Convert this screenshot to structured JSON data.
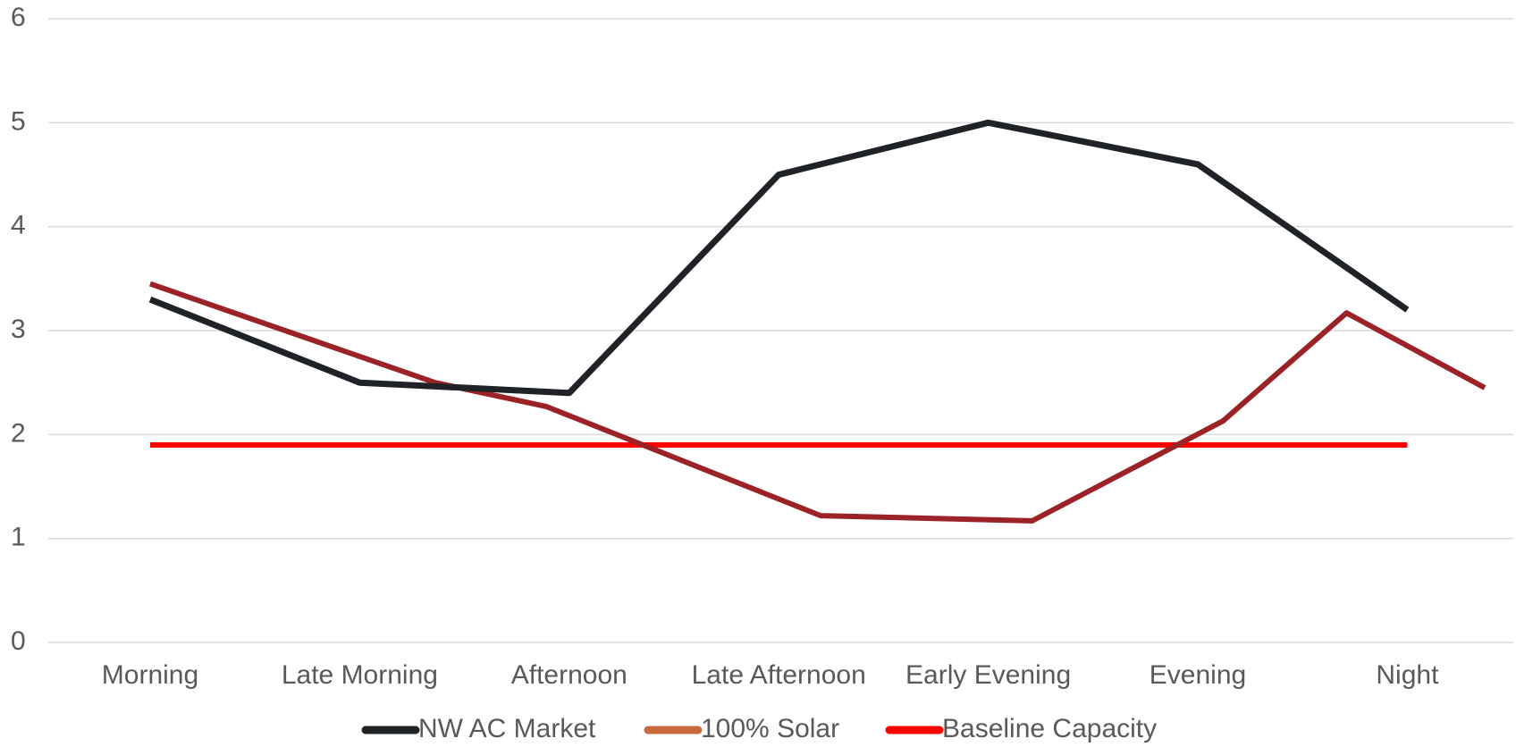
{
  "chart_data": {
    "type": "line",
    "categories": [
      "Morning",
      "Late Morning",
      "Afternoon",
      "Late Afternoon",
      "Early Evening",
      "Evening",
      "Night"
    ],
    "series": [
      {
        "name": "NW AC Market",
        "color": "#1f2226",
        "values": [
          3.3,
          2.5,
          2.4,
          4.5,
          5.0,
          4.6,
          3.2
        ]
      },
      {
        "name": "100% Solar",
        "color": "#9b2226",
        "legend_color": "#c96a3c",
        "x": [
          0,
          1.36,
          1.89,
          3.2,
          4.21,
          5.12,
          5.71,
          6.37
        ],
        "values": [
          3.45,
          2.5,
          2.27,
          1.22,
          1.17,
          2.13,
          3.17,
          2.45
        ]
      },
      {
        "name": "Baseline Capacity",
        "color": "#ff0000",
        "values": [
          1.9,
          1.9,
          1.9,
          1.9,
          1.9,
          1.9,
          1.9
        ]
      }
    ],
    "ylim": [
      0,
      6
    ],
    "yticks": [
      0,
      1,
      2,
      3,
      4,
      5,
      6
    ],
    "grid": true,
    "legend": "bottom"
  }
}
